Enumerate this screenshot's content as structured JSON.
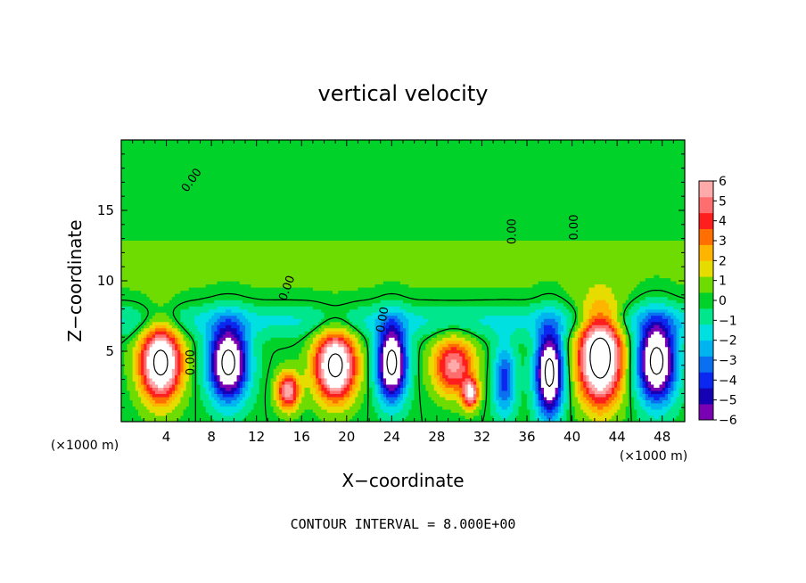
{
  "chart_data": {
    "type": "heatmap",
    "title": "vertical velocity",
    "xlabel": "X−coordinate",
    "ylabel": "Z−coordinate",
    "x_unit_left": "(×1000 m)",
    "x_unit_right": "(×1000 m)",
    "xlim": [
      0,
      50
    ],
    "ylim": [
      0,
      20
    ],
    "x_ticks": [
      4,
      8,
      12,
      16,
      20,
      24,
      28,
      32,
      36,
      40,
      44,
      48
    ],
    "x_tick_labels": [
      "4",
      "8",
      "12",
      "16",
      "20",
      "24",
      "28",
      "32",
      "36",
      "40",
      "44",
      "48"
    ],
    "y_ticks": [
      5,
      10,
      15
    ],
    "y_tick_labels": [
      "5",
      "10",
      "15"
    ],
    "contour_label": "0.00",
    "footnote": "CONTOUR INTERVAL = 8.000E+00",
    "colorbar": {
      "range": [
        -6,
        6
      ],
      "tick_labels": [
        "6",
        "5",
        "4",
        "3",
        "2",
        "1",
        "0",
        "−1",
        "−2",
        "−3",
        "−4",
        "−5",
        "−6"
      ],
      "colors": [
        "#7a00b4",
        "#1600b4",
        "#0a28f0",
        "#0a70f0",
        "#00b4f0",
        "#00e0e0",
        "#00e68c",
        "#00d22a",
        "#6edc00",
        "#e6dc00",
        "#ffb400",
        "#ff6e00",
        "#ff1e1e",
        "#ff6e6e",
        "#ffaaaa"
      ]
    },
    "cells": [
      {
        "x": 3.5,
        "z": 4.2,
        "amp": 9.0,
        "sx": 1.8,
        "sz": 2.6
      },
      {
        "x": 9.5,
        "z": 4.2,
        "amp": -9.0,
        "sx": 1.7,
        "sz": 2.6
      },
      {
        "x": 19.0,
        "z": 4.0,
        "amp": 9.0,
        "sx": 1.8,
        "sz": 2.4
      },
      {
        "x": 14.8,
        "z": 2.2,
        "amp": 6.0,
        "sx": 1.0,
        "sz": 1.3
      },
      {
        "x": 24.0,
        "z": 4.2,
        "amp": -9.0,
        "sx": 1.3,
        "sz": 2.6
      },
      {
        "x": 29.5,
        "z": 4.0,
        "amp": 5.5,
        "sx": 1.8,
        "sz": 2.0
      },
      {
        "x": 31.0,
        "z": 2.0,
        "amp": 6.0,
        "sx": 0.7,
        "sz": 1.0
      },
      {
        "x": 34.0,
        "z": 3.0,
        "amp": -4.0,
        "sx": 1.0,
        "sz": 2.5
      },
      {
        "x": 38.0,
        "z": 3.5,
        "amp": -9.0,
        "sx": 1.2,
        "sz": 3.0
      },
      {
        "x": 42.5,
        "z": 4.6,
        "amp": 10.0,
        "sx": 1.9,
        "sz": 3.2
      },
      {
        "x": 47.5,
        "z": 4.3,
        "amp": -9.0,
        "sx": 1.7,
        "sz": 2.8
      }
    ]
  }
}
